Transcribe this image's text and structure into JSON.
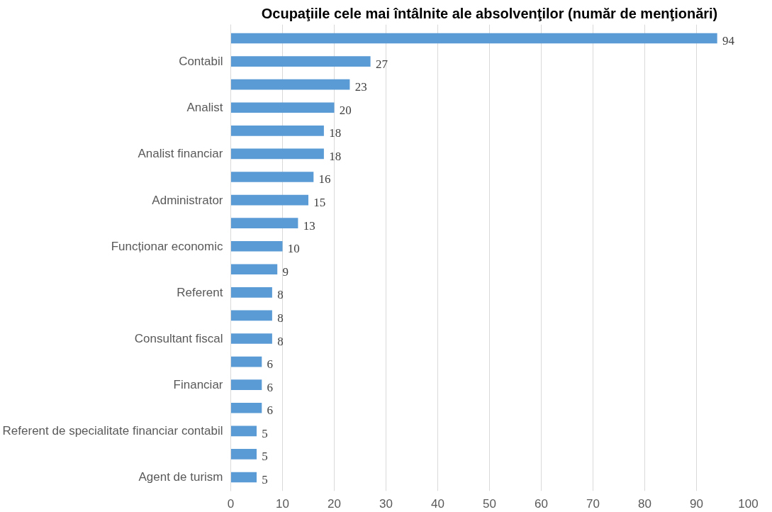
{
  "chart_data": {
    "type": "bar",
    "orientation": "horizontal",
    "title": "Ocupaţiile cele mai întâlnite ale absolvenţilor (număr de menţionări)",
    "categories": [
      null,
      "Contabil",
      null,
      "Analist",
      null,
      "Analist financiar",
      null,
      "Administrator",
      null,
      "Funcționar economic",
      null,
      "Referent",
      null,
      "Consultant fiscal",
      null,
      "Financiar",
      null,
      "Referent de specialitate financiar contabil",
      null,
      "Agent de turism"
    ],
    "values": [
      94,
      27,
      23,
      20,
      18,
      18,
      16,
      15,
      13,
      10,
      9,
      8,
      8,
      8,
      6,
      6,
      6,
      5,
      5,
      5
    ],
    "color": "#5b9bd5",
    "data_labels": true,
    "grid": "x",
    "xlim": [
      0,
      100
    ],
    "xticks": [
      0,
      10,
      20,
      30,
      40,
      50,
      60,
      70,
      80,
      90,
      100
    ]
  }
}
